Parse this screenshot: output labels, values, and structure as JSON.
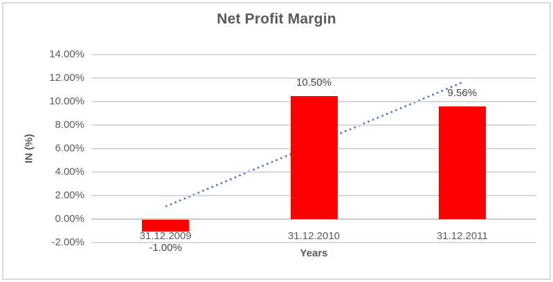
{
  "chart_data": {
    "type": "bar",
    "title": "Net Profit Margin",
    "xlabel": "Years",
    "ylabel": "IN (%)",
    "categories": [
      "31.12.2009",
      "31.12.2010",
      "31.12.2011"
    ],
    "values": [
      -1.0,
      10.5,
      9.56
    ],
    "data_labels": [
      "-1.00%",
      "10.50%",
      "9.56%"
    ],
    "ylim": [
      -2,
      14
    ],
    "ytick_step": 2,
    "ytick_labels": [
      "14.00%",
      "12.00%",
      "10.00%",
      "8.00%",
      "6.00%",
      "4.00%",
      "2.00%",
      "0.00%",
      "-2.00%"
    ],
    "grid": true,
    "legend": "none",
    "bar_color": "#ff0000",
    "trendline": {
      "type": "linear",
      "style": "dotted",
      "color": "#4472c4",
      "y_start": 1.07,
      "y_end": 11.63
    },
    "colors": {
      "gridline": "#d9d9d9",
      "axis_text": "#595959",
      "title_text": "#595959",
      "frame_border": "#d9d9d9"
    }
  }
}
